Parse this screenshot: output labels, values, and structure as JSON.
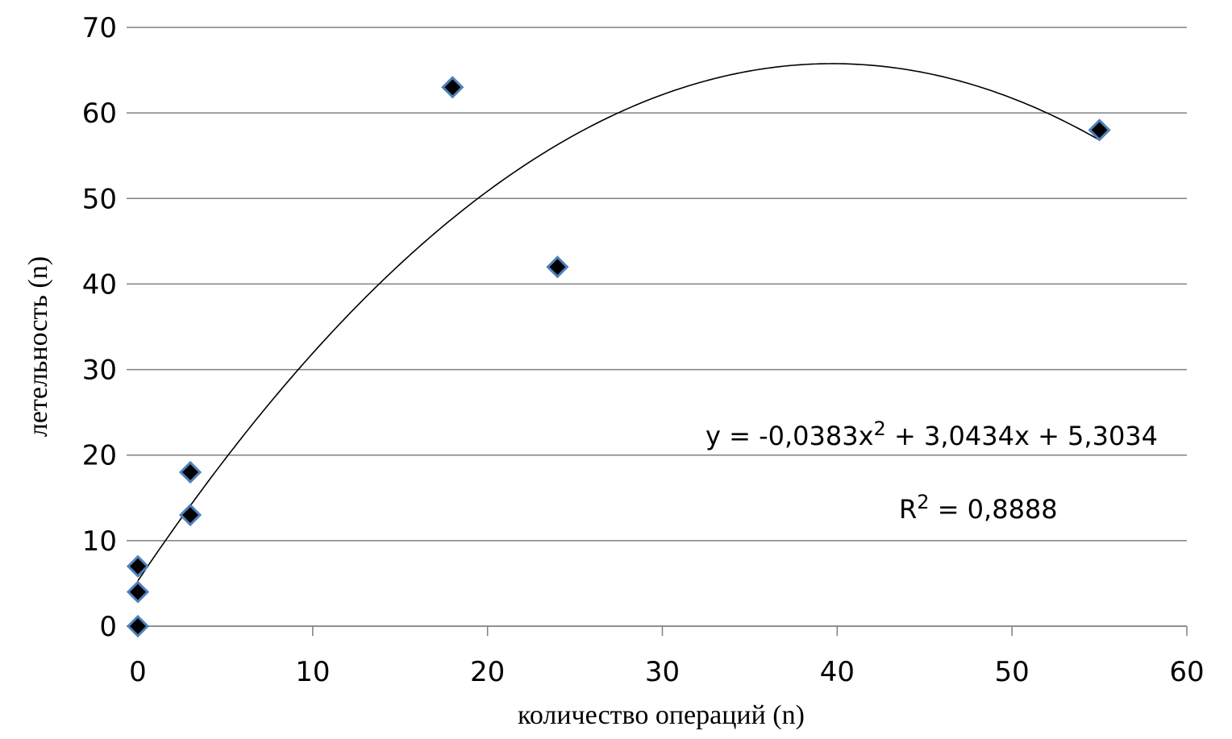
{
  "chart_data": {
    "type": "scatter",
    "title": "",
    "xlabel": "количество операций (n)",
    "ylabel": "летельность (n)",
    "xlim": [
      0,
      60
    ],
    "ylim": [
      0,
      70
    ],
    "x_ticks": [
      "0",
      "10",
      "20",
      "30",
      "40",
      "50",
      "60"
    ],
    "y_ticks": [
      "0",
      "10",
      "20",
      "30",
      "40",
      "50",
      "60",
      "70"
    ],
    "grid": "horizontal",
    "points": [
      {
        "x": 0,
        "y": 0
      },
      {
        "x": 0,
        "y": 4
      },
      {
        "x": 0,
        "y": 7
      },
      {
        "x": 3,
        "y": 13
      },
      {
        "x": 3,
        "y": 18
      },
      {
        "x": 18,
        "y": 63
      },
      {
        "x": 24,
        "y": 42
      },
      {
        "x": 55,
        "y": 58
      }
    ],
    "trendline": {
      "type": "polynomial",
      "coefficients": [
        -0.0383,
        3.0434,
        5.3034
      ],
      "equation": "y = -0,0383x² + 3,0434x + 5,3034",
      "r2_label": "R² = 0,8888"
    },
    "colors": {
      "marker_fill": "#000000",
      "marker_border": "#4f81bd",
      "gridlines": "#808080",
      "trendline": "#000000"
    }
  }
}
